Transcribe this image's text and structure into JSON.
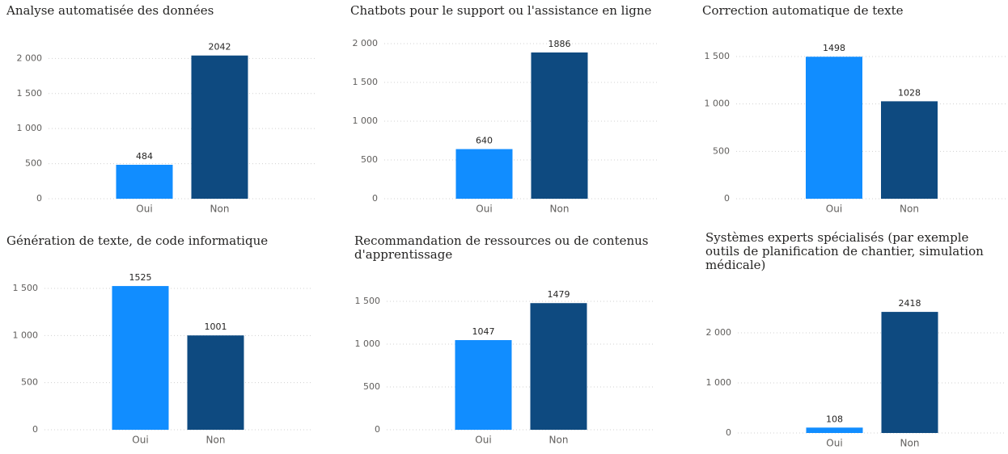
{
  "chart_data": [
    {
      "type": "bar",
      "title": "Analyse automatisée des données",
      "categories": [
        "Oui",
        "Non"
      ],
      "values": [
        484,
        2042
      ],
      "colors": [
        "#118dff",
        "#0e4a80"
      ],
      "ylim": [
        0,
        2200
      ],
      "yticks": [
        0,
        500,
        {
          "value": 1000,
          "label": "1 000"
        },
        {
          "value": 1500,
          "label": "1 500"
        },
        {
          "value": 2000,
          "label": "2 000"
        }
      ],
      "grid": true
    },
    {
      "type": "bar",
      "title": "Chatbots pour le support ou l'assistance en ligne",
      "categories": [
        "Oui",
        "Non"
      ],
      "values": [
        640,
        1886
      ],
      "colors": [
        "#118dff",
        "#0e4a80"
      ],
      "ylim": [
        0,
        2000
      ],
      "yticks": [
        0,
        500,
        {
          "value": 1000,
          "label": "1 000"
        },
        {
          "value": 1500,
          "label": "1 500"
        },
        {
          "value": 2000,
          "label": "2 000"
        }
      ],
      "grid": true
    },
    {
      "type": "bar",
      "title": "Correction automatique de texte",
      "categories": [
        "Oui",
        "Non"
      ],
      "values": [
        1498,
        1028
      ],
      "colors": [
        "#118dff",
        "#0e4a80"
      ],
      "ylim": [
        0,
        1500
      ],
      "yticks": [
        0,
        500,
        {
          "value": 1000,
          "label": "1 000"
        },
        {
          "value": 1500,
          "label": "1 500"
        }
      ],
      "grid": true
    },
    {
      "type": "bar",
      "title": "Génération de texte, de code informatique",
      "categories": [
        "Oui",
        "Non"
      ],
      "values": [
        1525,
        1001
      ],
      "colors": [
        "#118dff",
        "#0e4a80"
      ],
      "ylim": [
        0,
        1500
      ],
      "yticks": [
        0,
        500,
        {
          "value": 1000,
          "label": "1 000"
        },
        {
          "value": 1500,
          "label": "1 500"
        }
      ],
      "grid": true
    },
    {
      "type": "bar",
      "title": "Recommandation de ressources ou de contenus d'apprentissage",
      "categories": [
        "Oui",
        "Non"
      ],
      "values": [
        1047,
        1479
      ],
      "colors": [
        "#118dff",
        "#0e4a80"
      ],
      "ylim": [
        0,
        1500
      ],
      "yticks": [
        0,
        500,
        {
          "value": 1000,
          "label": "1 000"
        },
        {
          "value": 1500,
          "label": "1 500"
        }
      ],
      "grid": true
    },
    {
      "type": "bar",
      "title": "Systèmes experts spécialisés (par exemple outils de planification de chantier, simulation médicale)",
      "categories": [
        "Oui",
        "Non"
      ],
      "values": [
        108,
        2418
      ],
      "colors": [
        "#118dff",
        "#0e4a80"
      ],
      "ylim": [
        0,
        2500
      ],
      "yticks": [
        0,
        {
          "value": 1000,
          "label": "1 000"
        },
        {
          "value": 2000,
          "label": "2 000"
        }
      ],
      "grid": true
    }
  ]
}
